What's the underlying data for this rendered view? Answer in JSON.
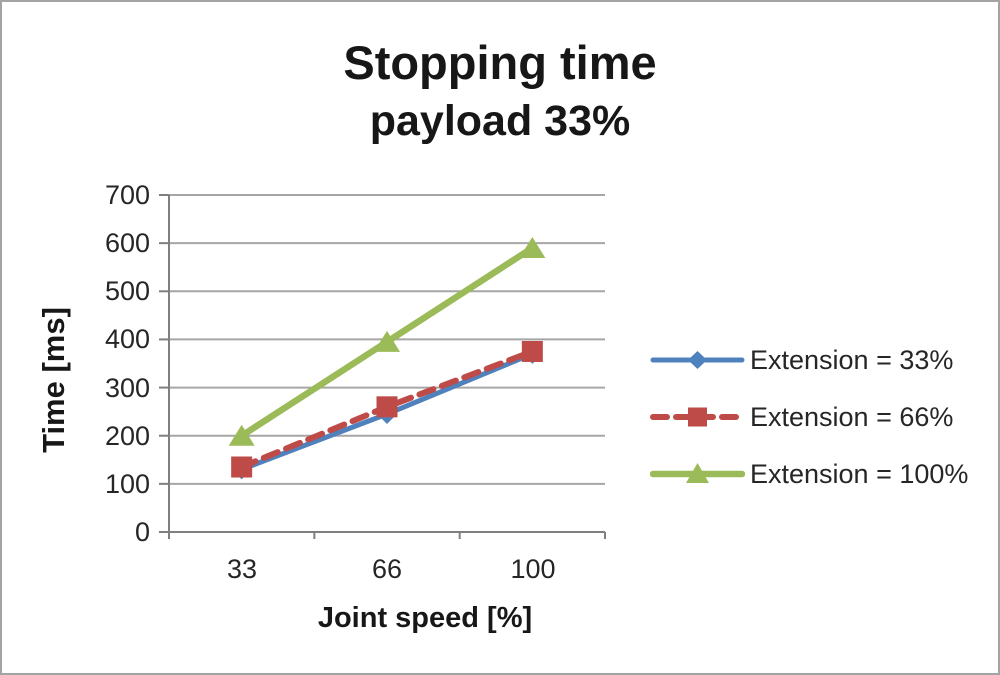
{
  "window": {
    "background": "#ffffff",
    "border_color": "#a3a3a3"
  },
  "chart_data": {
    "type": "line",
    "title": "Stopping time",
    "subtitle": "payload 33%",
    "xlabel": "Joint speed [%]",
    "ylabel": "Time [ms]",
    "categories": [
      33,
      66,
      100
    ],
    "x_tick_labels": [
      "33",
      "66",
      "100"
    ],
    "y_ticks": [
      0,
      100,
      200,
      300,
      400,
      500,
      600,
      700
    ],
    "y_tick_labels_top_to_bottom": [
      "700",
      "600",
      "500",
      "400",
      "300",
      "200",
      "100",
      "0"
    ],
    "ylim": [
      0,
      700
    ],
    "grid": true,
    "legend_position": "right",
    "series": [
      {
        "name": "Extension = 33%",
        "values": [
          130,
          245,
          370
        ],
        "color": "#4F81BD",
        "marker": "diamond",
        "line_style": "solid"
      },
      {
        "name": "Extension = 66%",
        "values": [
          135,
          260,
          375
        ],
        "color": "#BE4B48",
        "marker": "square",
        "line_style": "dashed"
      },
      {
        "name": "Extension = 100%",
        "values": [
          200,
          395,
          590
        ],
        "color": "#9BBB59",
        "marker": "triangle",
        "line_style": "solid"
      }
    ],
    "colors": {
      "gridline": "#a6a6a6",
      "axis": "#7f7f7f",
      "text": "#262626",
      "title_text": "#171717"
    }
  }
}
